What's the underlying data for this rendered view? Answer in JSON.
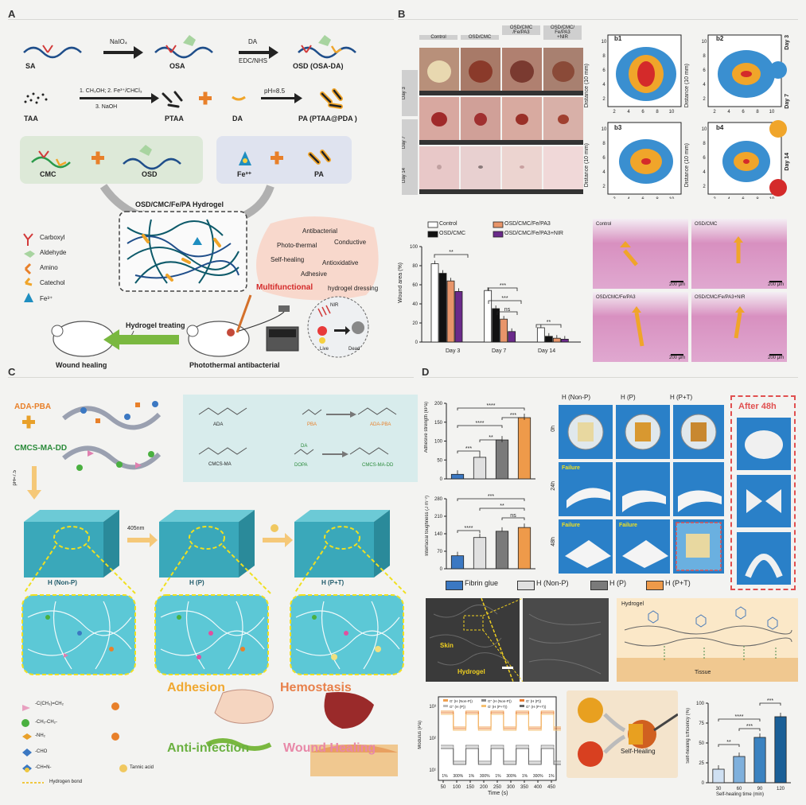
{
  "panels": {
    "a": "A",
    "b": "B",
    "c": "C",
    "d": "D"
  },
  "panelA": {
    "synthesis_row1": {
      "sa": "SA",
      "osa": "OSA",
      "osd": "OSD (OSA-DA)",
      "arrow1_top": "NaIO₄",
      "arrow2_top": "DA",
      "arrow2_bottom": "EDC/NHS"
    },
    "synthesis_row2": {
      "taa": "TAA",
      "step_line1": "1. CH₃OH; 2. Fe³⁺/CHCl₃",
      "step_line2": "3. NaOH",
      "ptaa": "PTAA",
      "da": "DA",
      "ph": "pH=8.5",
      "pa": "PA (PTAA@PDA )"
    },
    "components": {
      "cmc": "CMC",
      "osd": "OSD",
      "fe": "Fe³⁺",
      "pa": "PA"
    },
    "hydrogel_title": "OSD/CMC/Fe/PA Hydrogel",
    "legend": [
      "Carboxyl",
      "Aldehyde",
      "Amino",
      "Catechol",
      "Fe³⁺"
    ],
    "properties": [
      "Antibacterial",
      "Photo-thermal",
      "Conductive",
      "Self-healing",
      "Antioxidative",
      "Adhesive"
    ],
    "multifunctional": "Multifunctional",
    "dressing": "hydrogel dressing",
    "treating": "Hydrogel treating",
    "wound_healing": "Wound healing",
    "photothermal": "Photothermal antibacterial",
    "nir": "NIR",
    "live": "Live",
    "dead": "Dead"
  },
  "panelB": {
    "photo_cols": [
      "Control",
      "OSD/CMC",
      "OSD/CMC\n/Fe/PA3",
      "OSD/CMC/\nFe/PA3\n+NIR"
    ],
    "photo_rows": [
      "Day 3",
      "Day 7",
      "Day 14"
    ],
    "contour_titles": [
      "b1",
      "b2",
      "b3",
      "b4"
    ],
    "contour_ylabel": "Distance (10 mm)",
    "contour_ticks": [
      "2",
      "4",
      "6",
      "8",
      "10"
    ],
    "contour_legend": [
      "Day 3",
      "Day 7",
      "Day 14"
    ],
    "histo_labels": [
      "Control",
      "OSD/CMC",
      "OSD/CMC/Fe/PA3",
      "OSD/CMC/Fe/PA3+NIR"
    ],
    "scale": "200 μm"
  },
  "chart_data": [
    {
      "type": "bar",
      "title": "",
      "xlabel": "",
      "ylabel": "Wound area (%)",
      "ylim": [
        0,
        100
      ],
      "yticks": [
        "0",
        "20",
        "40",
        "60",
        "80",
        "100"
      ],
      "categories": [
        "Day 3",
        "Day 7",
        "Day 14"
      ],
      "series": [
        {
          "name": "Control",
          "values": [
            82,
            54,
            15
          ]
        },
        {
          "name": "OSD/CMC",
          "values": [
            72,
            35,
            6
          ]
        },
        {
          "name": "OSD/CMC/Fe/PA3",
          "values": [
            64,
            24,
            4
          ]
        },
        {
          "name": "OSD/CMC/Fe/PA3+NIR",
          "values": [
            53,
            11,
            3
          ]
        }
      ],
      "significance": [
        "**",
        "***",
        "***",
        "ns",
        "**",
        "**"
      ],
      "colors": [
        "#ffffff",
        "#111111",
        "#e8956a",
        "#6a2a8a"
      ]
    },
    {
      "type": "bar",
      "title": "",
      "ylabel": "Adhesive strength (kPa)",
      "ylim": [
        0,
        200
      ],
      "yticks": [
        "0",
        "50",
        "100",
        "150",
        "200"
      ],
      "categories": [
        "Fibrin glue",
        "H (Non-P)",
        "H (P)",
        "H (P+T)"
      ],
      "values": [
        12,
        57,
        103,
        162
      ],
      "significance": [
        "***",
        "**",
        "****",
        "***",
        "****"
      ],
      "colors": [
        "#3b78c2",
        "#e0e0e0",
        "#7a7a7a",
        "#ee9a4a"
      ]
    },
    {
      "type": "bar",
      "title": "",
      "ylabel": "Interfacial toughness (J m⁻²)",
      "ylim": [
        0,
        280
      ],
      "yticks": [
        "0",
        "70",
        "140",
        "210",
        "280"
      ],
      "categories": [
        "Fibrin glue",
        "H (Non-P)",
        "H (P)",
        "H (P+T)"
      ],
      "values": [
        52,
        125,
        150,
        165
      ],
      "significance": [
        "****",
        "ns",
        "**",
        "***"
      ],
      "colors": [
        "#3b78c2",
        "#e0e0e0",
        "#7a7a7a",
        "#ee9a4a"
      ]
    },
    {
      "type": "bar",
      "title": "",
      "xlabel": "Self-healing time (min)",
      "ylabel": "Self-healing Efficiency (%)",
      "ylim": [
        0,
        100
      ],
      "yticks": [
        "0",
        "25",
        "50",
        "75",
        "100"
      ],
      "categories": [
        "30",
        "60",
        "90",
        "120"
      ],
      "values": [
        17,
        33,
        57,
        83
      ],
      "significance": [
        "**",
        "***",
        "****",
        "***"
      ],
      "colors": [
        "#cfe0f2",
        "#7fb0dc",
        "#3b82c0",
        "#1a5f97"
      ]
    },
    {
      "type": "line",
      "title": "",
      "xlabel": "Time (s)",
      "ylabel": "Modulus (Pa)",
      "xticks": [
        "50",
        "100",
        "150",
        "200",
        "250",
        "300",
        "350",
        "400",
        "450"
      ],
      "yticks": [
        "10³",
        "10²",
        "10¹"
      ],
      "strain_labels": [
        "1%",
        "300%",
        "1%",
        "300%",
        "1%",
        "300%",
        "1%",
        "300%",
        "1%"
      ],
      "series": [
        {
          "name": "G' (H (Non-P))"
        },
        {
          "name": "G'' (H (Non-P))"
        },
        {
          "name": "G' (H (P))"
        },
        {
          "name": "G'' (H (P))"
        },
        {
          "name": "G' (H (P+T))"
        },
        {
          "name": "G'' (H (P+T))"
        }
      ]
    }
  ],
  "panelC": {
    "ada_pba": "ADA-PBA",
    "cmcs": "CMCS-MA-DD",
    "ph": "pH=7.5",
    "states": [
      "H (Non-P)",
      "H (P)",
      "H (P+T)"
    ],
    "light": "405nm",
    "rxn_labels": [
      "ADA",
      "PBA",
      "ADA-PBA",
      "CMCS-MA",
      "DA",
      "DOPA",
      "CMCS-MA-DD"
    ],
    "legend_left": [
      "-C(CH₃)=CH₂",
      "-CH₂-CH₂-",
      "-NH₂",
      "-CHO",
      "-CH=N-"
    ],
    "tannic": "Tannic acid",
    "hbond": "Hydrogen bond",
    "functions": [
      "Adhesion",
      "Hemostasis",
      "Anti-infection",
      "Wound Healing"
    ]
  },
  "panelD": {
    "photo_cols": [
      "H (Non-P)",
      "H (P)",
      "H (P+T)"
    ],
    "photo_rows": [
      "0h",
      "24h",
      "48h"
    ],
    "failure": "Failure",
    "after": "After 48h",
    "legend": [
      "Fibrin glue",
      "H (Non-P)",
      "H (P)",
      "H (P+T)"
    ],
    "sem_skin": "Skin",
    "sem_hydrogel": "Hydrogel",
    "diagram_hydrogel": "Hydrogel",
    "diagram_tissue": "Tissue",
    "self_healing": "Self-Healing"
  },
  "colors": {
    "blue": "#3a8fd0",
    "orange": "#f0a52a",
    "red": "#d42a2a",
    "green_arrow": "#7ab840",
    "teal": "#5ec0d0",
    "panel_bg": "#f3f3f1"
  }
}
